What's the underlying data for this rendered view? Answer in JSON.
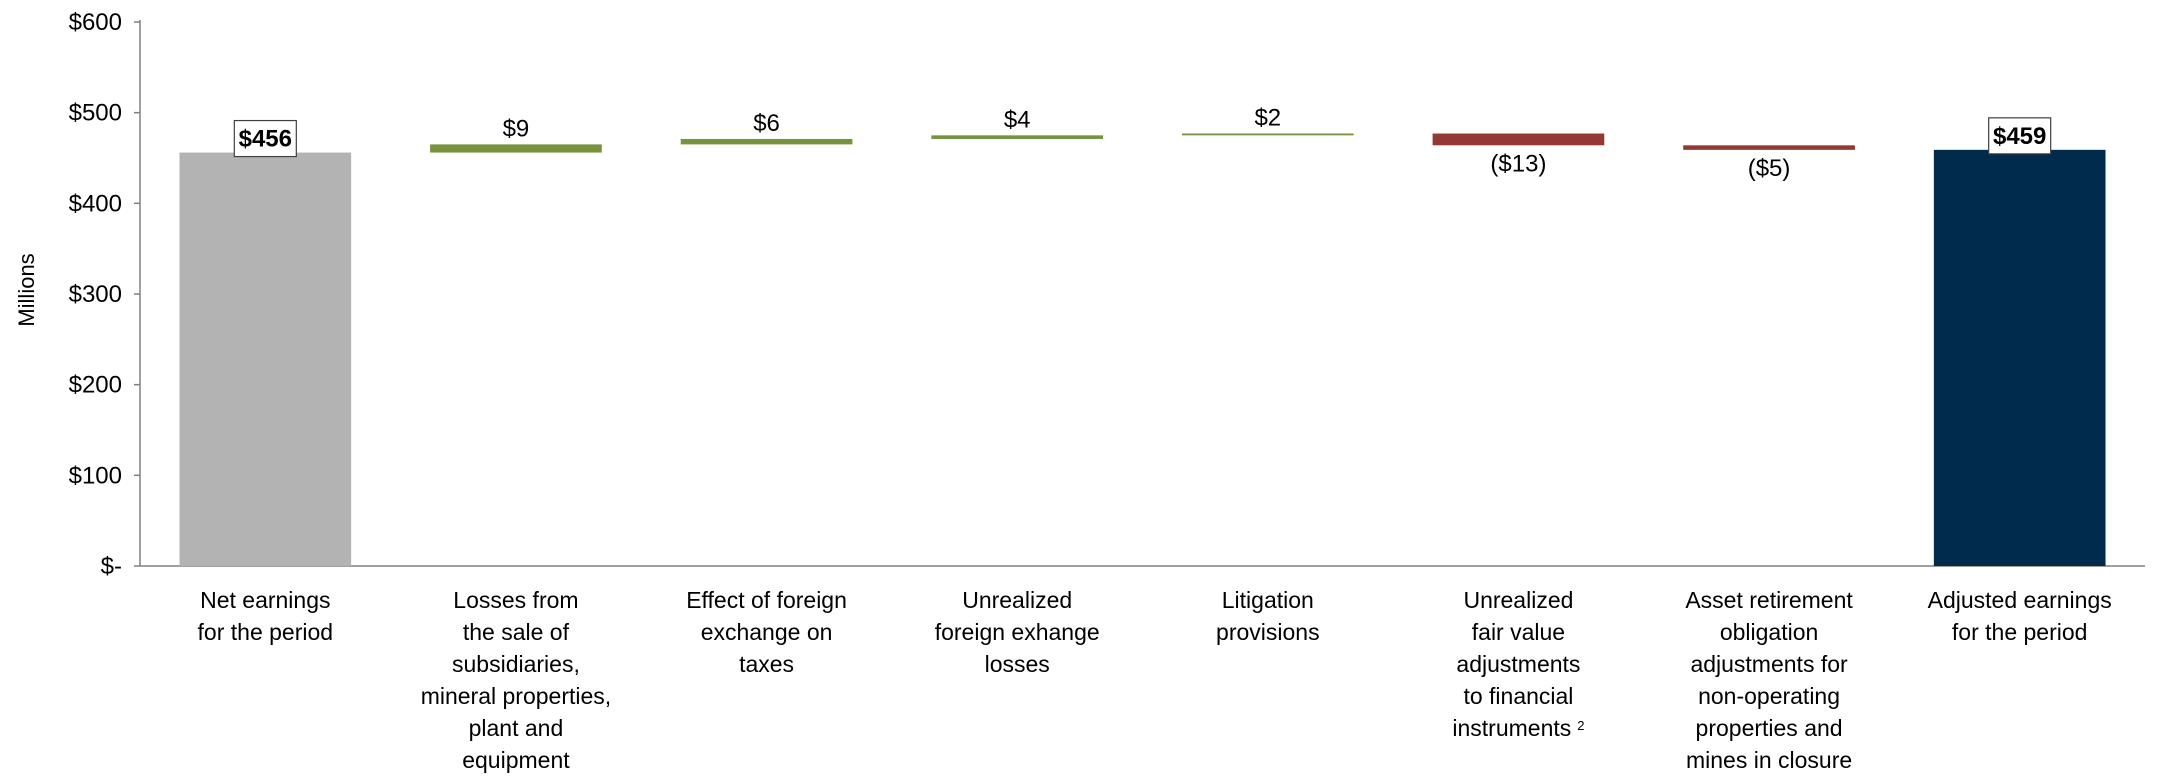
{
  "chart_data": {
    "type": "bar",
    "subtype": "waterfall",
    "title": "",
    "xlabel": "",
    "ylabel": "Millions",
    "ylim": [
      0,
      600
    ],
    "yticks": [
      0,
      100,
      200,
      300,
      400,
      500,
      600
    ],
    "ytick_labels": [
      "$-",
      "$100",
      "$200",
      "$300",
      "$400",
      "$500",
      "$600"
    ],
    "grid": false,
    "legend": "none",
    "colors": {
      "total_start": "#b3b3b3",
      "increase": "#77933c",
      "decrease": "#953735",
      "total_end": "#002b4d",
      "axis": "#808080"
    },
    "bars": [
      {
        "category_lines": [
          "Net earnings",
          "for the period"
        ],
        "kind": "total_start",
        "value": 456,
        "label": "$456"
      },
      {
        "category_lines": [
          "Losses from",
          "the sale of",
          "subsidiaries,",
          "mineral properties,",
          "plant and",
          "equipment"
        ],
        "kind": "increase",
        "value": 9,
        "label": "$9"
      },
      {
        "category_lines": [
          "Effect of foreign",
          "exchange on",
          "taxes"
        ],
        "kind": "increase",
        "value": 6,
        "label": "$6"
      },
      {
        "category_lines": [
          "Unrealized",
          "foreign exhange",
          "losses"
        ],
        "kind": "increase",
        "value": 4,
        "label": "$4"
      },
      {
        "category_lines": [
          "Litigation",
          "provisions"
        ],
        "kind": "increase",
        "value": 2,
        "label": "$2"
      },
      {
        "category_lines": [
          "Unrealized",
          "fair value",
          "adjustments",
          "to financial",
          "instruments"
        ],
        "category_footnote": "2",
        "kind": "decrease",
        "value": -13,
        "label": "($13)"
      },
      {
        "category_lines": [
          "Asset retirement",
          "obligation",
          "adjustments for",
          "non-operating",
          "properties and",
          "mines in closure"
        ],
        "kind": "decrease",
        "value": -5,
        "label": "($5)"
      },
      {
        "category_lines": [
          "Adjusted earnings",
          "for the period"
        ],
        "kind": "total_end",
        "value": 459,
        "label": "$459"
      }
    ]
  }
}
